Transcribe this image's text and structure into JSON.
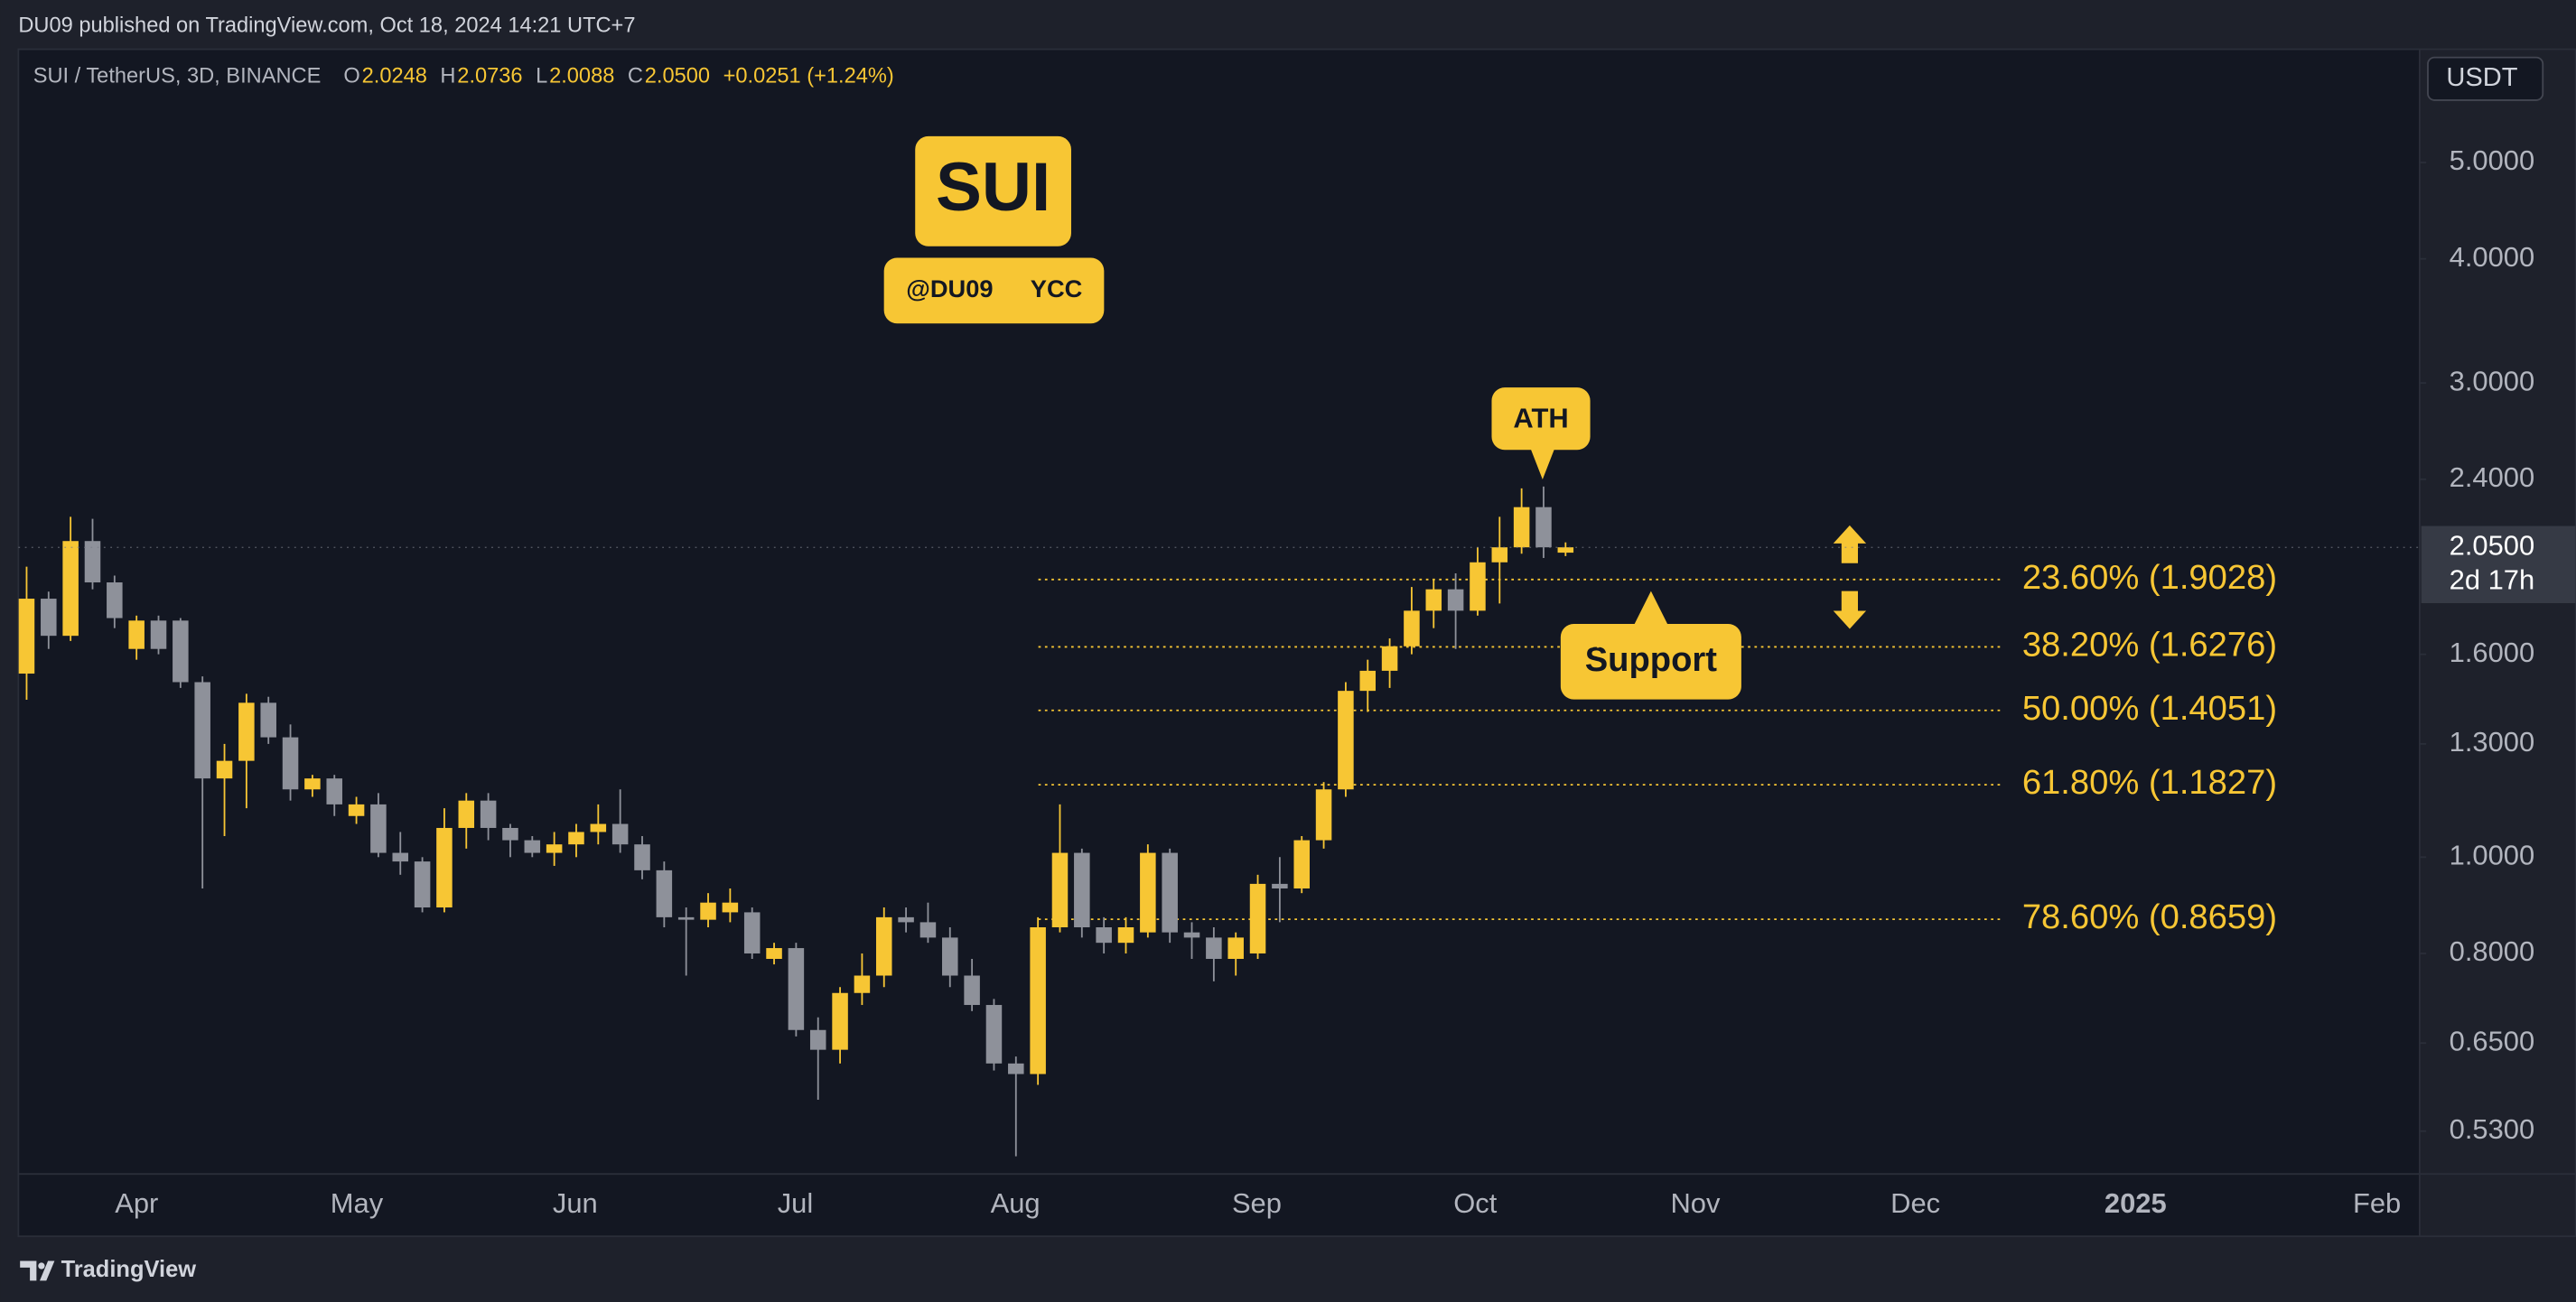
{
  "header": {
    "published": "DU09 published on TradingView.com, Oct 18, 2024 14:21 UTC+7",
    "symbol": "SUI / TetherUS, 3D, BINANCE",
    "ohlc": [
      {
        "key": "O",
        "value": "2.0248"
      },
      {
        "key": "H",
        "value": "2.0736"
      },
      {
        "key": "L",
        "value": "2.0088"
      },
      {
        "key": "C",
        "value": "2.0500"
      }
    ],
    "change": "+0.0251 (+1.24%)"
  },
  "chart_data": {
    "type": "candlestick",
    "log_scale": true,
    "up_color": "#f7c634",
    "down_color": "#8e919a",
    "ylim": [
      0.48,
      6.5
    ],
    "yticks": [
      {
        "value": 5,
        "label": "5.0000"
      },
      {
        "value": 4,
        "label": "4.0000"
      },
      {
        "value": 3,
        "label": "3.0000"
      },
      {
        "value": 2.4,
        "label": "2.4000"
      },
      {
        "value": 1.6,
        "label": "1.6000"
      },
      {
        "value": 1.3,
        "label": "1.3000"
      },
      {
        "value": 1,
        "label": "1.0000"
      },
      {
        "value": 0.8,
        "label": "0.8000"
      },
      {
        "value": 0.65,
        "label": "0.6500"
      },
      {
        "value": 0.53,
        "label": "0.5300"
      }
    ],
    "y_unit": "USDT",
    "current_price": {
      "value": 2.05,
      "label": "2.0500"
    },
    "countdown": "2d 17h",
    "x_labels": [
      "Apr",
      "May",
      "Jun",
      "Jul",
      "Aug",
      "Sep",
      "Oct",
      "Nov",
      "Dec",
      "2025",
      "Feb"
    ],
    "open": [
      1.53,
      1.82,
      1.67,
      2.08,
      1.89,
      1.62,
      1.73,
      1.73,
      1.5,
      1.2,
      1.25,
      1.43,
      1.32,
      1.17,
      1.2,
      1.1,
      1.13,
      1.01,
      0.99,
      0.89,
      1.07,
      1.14,
      1.07,
      1.04,
      1.01,
      1.03,
      1.06,
      1.08,
      1.03,
      0.97,
      0.87,
      0.865,
      0.88,
      0.88,
      0.79,
      0.81,
      0.67,
      0.64,
      0.73,
      0.76,
      0.87,
      0.86,
      0.83,
      0.76,
      0.71,
      0.62,
      0.605,
      0.85,
      1.01,
      0.85,
      0.82,
      0.84,
      1.01,
      0.84,
      0.83,
      0.79,
      0.8,
      0.94,
      0.93,
      1.04,
      1.17,
      1.47,
      1.54,
      1.63,
      1.77,
      1.86,
      1.77,
      1.98,
      2.05,
      2.25,
      2.0248
    ],
    "high": [
      1.96,
      1.85,
      2.2,
      2.19,
      1.92,
      1.75,
      1.75,
      1.74,
      1.52,
      1.3,
      1.46,
      1.45,
      1.36,
      1.21,
      1.21,
      1.15,
      1.16,
      1.06,
      1.0,
      1.12,
      1.16,
      1.16,
      1.08,
      1.05,
      1.06,
      1.08,
      1.13,
      1.17,
      1.05,
      0.99,
      0.89,
      0.92,
      0.93,
      0.89,
      0.82,
      0.82,
      0.69,
      0.74,
      0.8,
      0.89,
      0.89,
      0.9,
      0.85,
      0.79,
      0.72,
      0.63,
      0.87,
      1.13,
      1.02,
      0.87,
      0.87,
      1.03,
      1.02,
      0.86,
      0.85,
      0.84,
      0.96,
      1.0,
      1.05,
      1.19,
      1.5,
      1.58,
      1.66,
      1.87,
      1.9,
      1.93,
      2.05,
      2.2,
      2.35,
      2.36,
      2.0736
    ],
    "low": [
      1.44,
      1.62,
      1.65,
      1.86,
      1.7,
      1.58,
      1.6,
      1.48,
      0.93,
      1.05,
      1.12,
      1.3,
      1.14,
      1.15,
      1.1,
      1.08,
      1.0,
      0.96,
      0.88,
      0.88,
      1.02,
      1.04,
      1.0,
      1.0,
      0.98,
      1.0,
      1.03,
      1.01,
      0.95,
      0.85,
      0.76,
      0.85,
      0.86,
      0.79,
      0.78,
      0.66,
      0.57,
      0.62,
      0.71,
      0.74,
      0.84,
      0.82,
      0.74,
      0.7,
      0.61,
      0.5,
      0.59,
      0.84,
      0.83,
      0.8,
      0.8,
      0.83,
      0.82,
      0.79,
      0.75,
      0.76,
      0.79,
      0.86,
      0.92,
      1.02,
      1.15,
      1.4,
      1.48,
      1.6,
      1.7,
      1.62,
      1.75,
      1.8,
      2.02,
      2.0,
      2.0088
    ],
    "close": [
      1.82,
      1.67,
      2.08,
      1.89,
      1.74,
      1.73,
      1.62,
      1.5,
      1.2,
      1.25,
      1.43,
      1.32,
      1.17,
      1.2,
      1.13,
      1.13,
      1.01,
      0.99,
      0.89,
      1.07,
      1.14,
      1.07,
      1.04,
      1.01,
      1.03,
      1.06,
      1.08,
      1.03,
      0.97,
      0.87,
      0.865,
      0.9,
      0.9,
      0.8,
      0.81,
      0.67,
      0.64,
      0.73,
      0.76,
      0.87,
      0.86,
      0.83,
      0.76,
      0.71,
      0.62,
      0.605,
      0.85,
      1.01,
      0.85,
      0.82,
      0.85,
      1.01,
      0.84,
      0.83,
      0.79,
      0.83,
      0.94,
      0.93,
      1.04,
      1.17,
      1.47,
      1.54,
      1.63,
      1.77,
      1.86,
      1.77,
      1.98,
      2.05,
      2.25,
      2.05,
      2.05
    ],
    "fib_color": "#f7c634",
    "fib_levels": [
      {
        "value": 1.9028,
        "label": "23.60% (1.9028)"
      },
      {
        "value": 1.6276,
        "label": "38.20% (1.6276)"
      },
      {
        "value": 1.4051,
        "label": "50.00% (1.4051)"
      },
      {
        "value": 1.1827,
        "label": "61.80% (1.1827)"
      },
      {
        "value": 0.8659,
        "label": "78.60% (0.8659)"
      }
    ],
    "annotations": {
      "title": "SUI",
      "handle": "@DU09",
      "partner": "YCC",
      "ath": "ATH",
      "support": "Support"
    }
  },
  "footer": {
    "brand": "TradingView"
  }
}
